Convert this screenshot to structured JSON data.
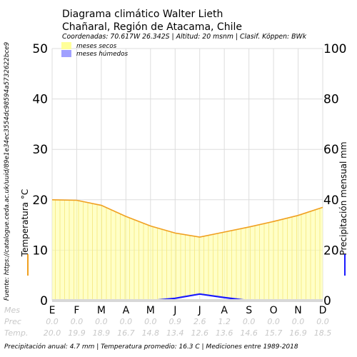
{
  "chart_data": {
    "type": "line",
    "title": "Diagrama climático Walter Lieth",
    "location": "Chañaral, Región de Atacama, Chile",
    "subtitle": "Coordenadas: 70.617W 26.342S | Altitud: 20 msnm | Clasif. Köppen: BWk",
    "categories": [
      "E",
      "F",
      "M",
      "A",
      "M",
      "J",
      "J",
      "A",
      "S",
      "O",
      "N",
      "D"
    ],
    "series": [
      {
        "name": "Temperatura",
        "axis": "left",
        "color": "#f0a020",
        "values": [
          20.0,
          19.9,
          18.9,
          16.7,
          14.8,
          13.4,
          12.6,
          13.6,
          14.6,
          15.7,
          16.9,
          18.5
        ]
      },
      {
        "name": "Precipitación",
        "axis": "right",
        "color": "#1a1aff",
        "values": [
          0.0,
          0.0,
          0.0,
          0.0,
          0.0,
          0.9,
          2.6,
          1.2,
          0.0,
          0.0,
          0.0,
          0.0
        ]
      }
    ],
    "ylabel": "Temperatura °C",
    "y2label": "Precipitación mensual mm",
    "ylim": [
      0,
      50
    ],
    "y2lim": [
      0,
      100
    ],
    "yticks": [
      "0",
      "10",
      "20",
      "30",
      "40",
      "50"
    ],
    "y2ticks": [
      "0",
      "20",
      "40",
      "60",
      "80",
      "100"
    ],
    "grid": true,
    "legend": {
      "position": "top-left",
      "items": [
        {
          "label": "meses secos",
          "color": "#ffff99"
        },
        {
          "label": "meses húmedos",
          "color": "#a0a0ff"
        }
      ]
    },
    "rows": {
      "month_label": "Mes",
      "prec_label": "Prec",
      "temp_label": "Temp.",
      "prec": [
        "0.0",
        "0.0",
        "0.0",
        "0.0",
        "0.0",
        "0.9",
        "2.6",
        "1.2",
        "0.0",
        "0.0",
        "0.0",
        "0.0"
      ],
      "temp": [
        "20.0",
        "19.9",
        "18.9",
        "16.7",
        "14.8",
        "13.4",
        "12.6",
        "13.6",
        "14.6",
        "15.7",
        "16.9",
        "18.5"
      ]
    },
    "source": "Fuente: https://catalogue.ceda.ac.uk/uuid/89e1e34ec3554dc98594a5732622bce9",
    "footer": "Precipitación anual: 4.7 mm | Temperatura promedio: 16.3 C | Mediciones entre 1989-2018"
  }
}
